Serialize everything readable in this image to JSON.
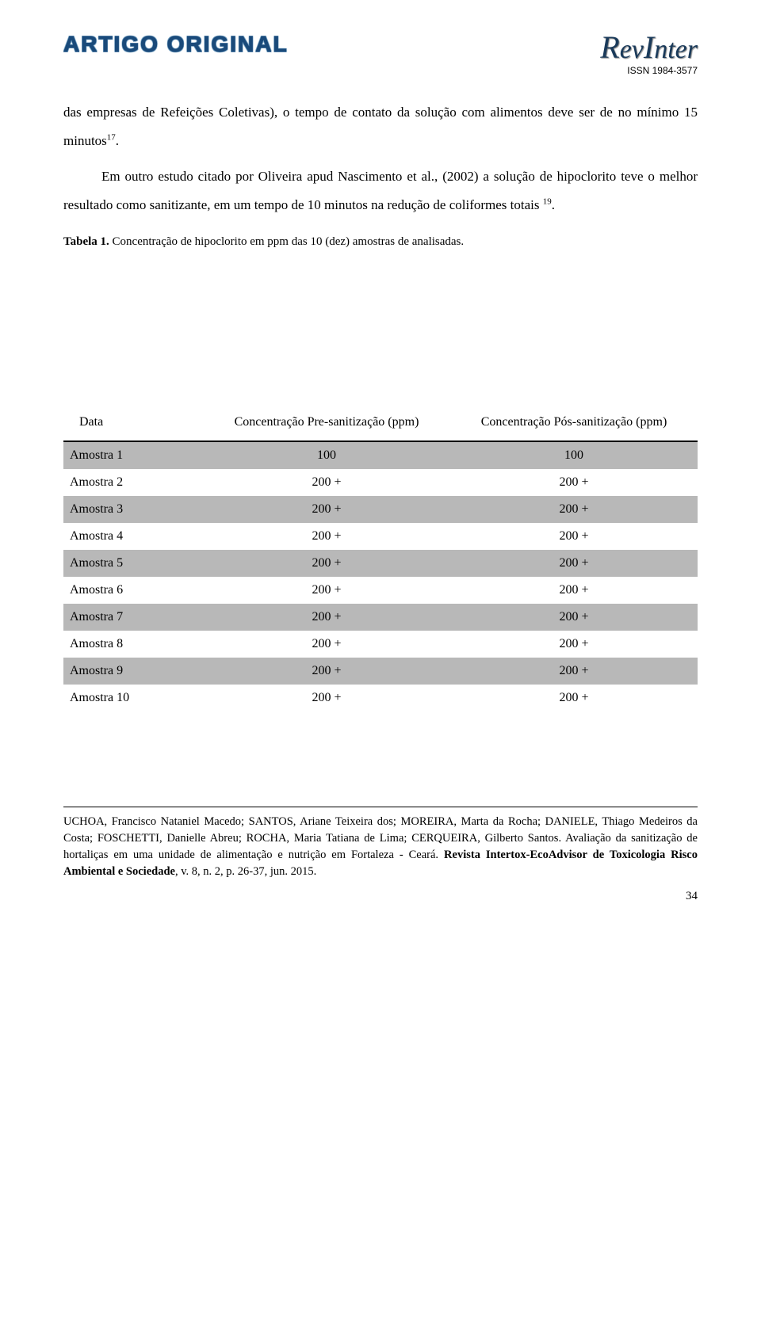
{
  "header": {
    "section_label": "ARTIGO ORIGINAL",
    "brand_name": "RevInter",
    "issn": "ISSN 1984-3577"
  },
  "paragraph1": "das empresas de Refeições Coletivas), o tempo de contato da solução com alimentos deve ser de no mínimo 15 minutos",
  "paragraph1_sup": "17",
  "paragraph1_tail": ".",
  "paragraph2_lead": "Em outro estudo citado por Oliveira apud Nascimento et al., (2002) a solução de hipoclorito teve o melhor resultado como sanitizante, em um tempo de 10 minutos na redução de coliformes totais ",
  "paragraph2_sup": "19",
  "paragraph2_tail": ".",
  "table_caption_bold": "Tabela 1.",
  "table_caption_rest": " Concentração de hipoclorito em ppm das 10 (dez) amostras de analisadas.",
  "table": {
    "columns": [
      "Data",
      "Concentração Pre-sanitização (ppm)",
      "Concentração Pós-sanitização (ppm)"
    ],
    "col_widths": [
      "22%",
      "39%",
      "39%"
    ],
    "header_border_color": "#000000",
    "row_colors": {
      "grey": "#b8b8b8",
      "white": "#ffffff"
    },
    "rows": [
      {
        "bg": "grey",
        "cells": [
          "Amostra 1",
          "100",
          "100"
        ]
      },
      {
        "bg": "white",
        "cells": [
          "Amostra 2",
          "200 +",
          "200 +"
        ]
      },
      {
        "bg": "grey",
        "cells": [
          "Amostra 3",
          "200 +",
          "200 +"
        ]
      },
      {
        "bg": "white",
        "cells": [
          "Amostra 4",
          "200 +",
          "200 +"
        ]
      },
      {
        "bg": "grey",
        "cells": [
          "Amostra 5",
          "200 +",
          "200 +"
        ]
      },
      {
        "bg": "white",
        "cells": [
          "Amostra 6",
          "200 +",
          "200 +"
        ]
      },
      {
        "bg": "grey",
        "cells": [
          "Amostra 7",
          "200 +",
          "200 +"
        ]
      },
      {
        "bg": "white",
        "cells": [
          "Amostra 8",
          "200 +",
          "200 +"
        ]
      },
      {
        "bg": "grey",
        "cells": [
          "Amostra 9",
          "200 +",
          "200 +"
        ]
      },
      {
        "bg": "white",
        "cells": [
          "Amostra 10",
          "200 +",
          "200 +"
        ]
      }
    ]
  },
  "footer": {
    "text_pre": "UCHOA, Francisco Nataniel Macedo; SANTOS, Ariane Teixeira dos; MOREIRA, Marta da Rocha; DANIELE, Thiago Medeiros da Costa; FOSCHETTI, Danielle Abreu; ROCHA, Maria Tatiana de Lima; CERQUEIRA, Gilberto Santos. Avaliação da sanitização de hortaliças em uma unidade de alimentação e nutrição em Fortaleza - Ceará. ",
    "text_bold": "Revista Intertox-EcoAdvisor de Toxicologia Risco Ambiental e Sociedade",
    "text_post": ", v. 8, n. 2, p. 26-37, jun. 2015."
  },
  "page_number": "34",
  "colors": {
    "section_title": "#1a4a7a",
    "brand": "#1a3a5a",
    "text": "#000000",
    "background": "#ffffff"
  },
  "typography": {
    "body_fontsize_pt": 13,
    "title_fontsize_pt": 21,
    "table_fontsize_pt": 12,
    "footer_fontsize_pt": 11
  }
}
